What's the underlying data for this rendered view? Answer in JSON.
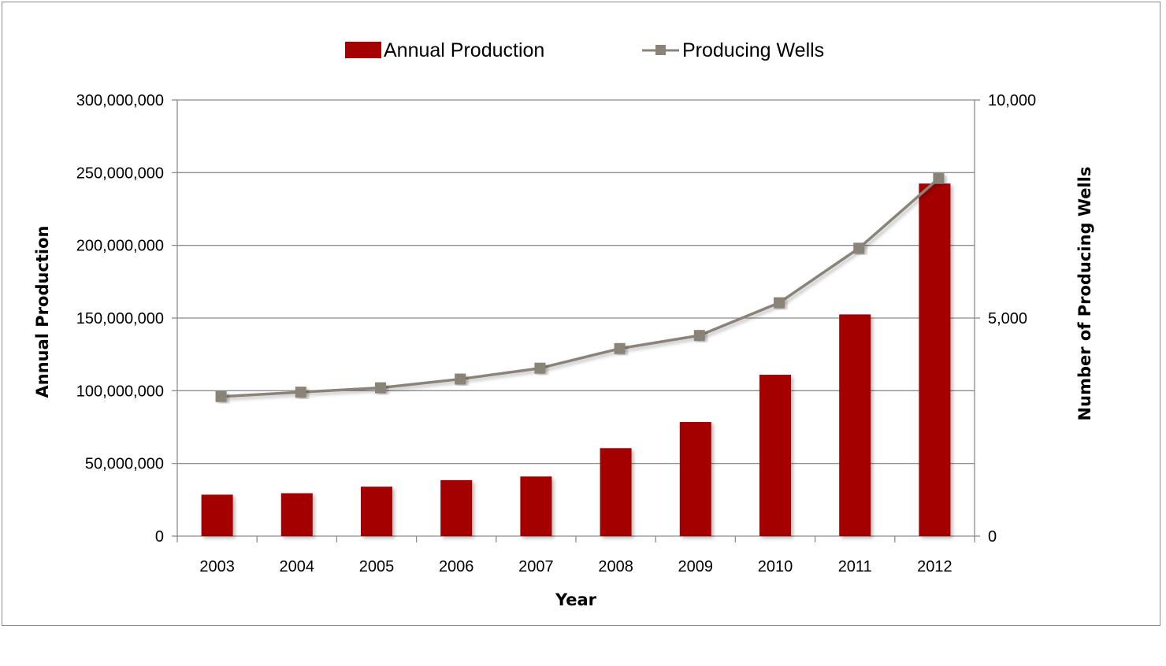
{
  "chart_data": {
    "type": "bar",
    "categories": [
      "2003",
      "2004",
      "2005",
      "2006",
      "2007",
      "2008",
      "2009",
      "2010",
      "2011",
      "2012"
    ],
    "series": [
      {
        "name": "Annual Production",
        "type": "bar",
        "axis": "left",
        "color": "#a50000",
        "values": [
          28500000,
          29500000,
          34000000,
          38500000,
          41000000,
          60500000,
          78500000,
          111000000,
          152500000,
          242500000
        ]
      },
      {
        "name": "Producing Wells",
        "type": "line",
        "axis": "right",
        "color": "#8b8378",
        "marker": "square",
        "values": [
          3200,
          3300,
          3400,
          3600,
          3850,
          4300,
          4600,
          5350,
          6600,
          8200
        ]
      }
    ],
    "xlabel": "Year",
    "ylabel": "Annual Production",
    "y2label": "Number of Producing Wells",
    "ylim": [
      0,
      300000000
    ],
    "y2lim": [
      0,
      10000
    ],
    "yticks": [
      "0",
      "50,000,000",
      "100,000,000",
      "150,000,000",
      "200,000,000",
      "250,000,000",
      "300,000,000"
    ],
    "y2ticks": [
      "0",
      "5,000",
      "10,000"
    ],
    "grid": true,
    "legend": "top"
  }
}
